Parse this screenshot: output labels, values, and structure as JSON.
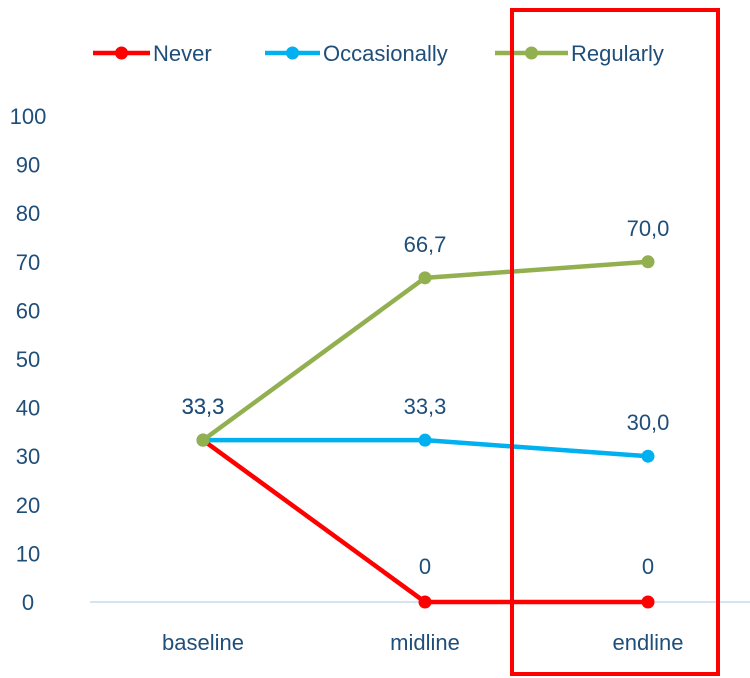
{
  "chart_data": {
    "type": "line",
    "categories": [
      "baseline",
      "midline",
      "endline"
    ],
    "ylim": [
      0,
      100
    ],
    "yticks": [
      0,
      10,
      20,
      30,
      40,
      50,
      60,
      70,
      80,
      90,
      100
    ],
    "legend_position": "top",
    "grid": false,
    "series": [
      {
        "name": "Never",
        "color": "#ff0000",
        "values": [
          33.3,
          0,
          0
        ],
        "labels": [
          "",
          "0",
          "0"
        ]
      },
      {
        "name": "Occasionally",
        "color": "#00b0f0",
        "values": [
          33.3,
          33.3,
          30.0
        ],
        "labels": [
          "33,3",
          "33,3",
          "30,0"
        ]
      },
      {
        "name": "Regularly",
        "color": "#92b050",
        "values": [
          33.3,
          66.7,
          70.0
        ],
        "labels": [
          "33,3",
          "66,7",
          "70,0"
        ]
      }
    ],
    "highlight": {
      "category": "endline",
      "color": "#ff0000"
    }
  }
}
